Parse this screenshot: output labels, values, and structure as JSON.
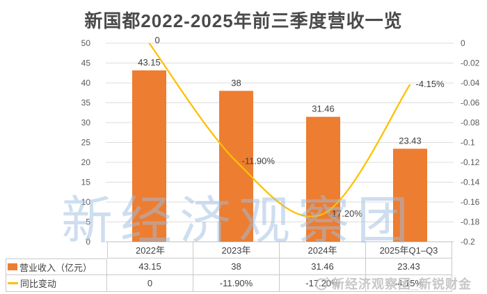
{
  "title": "新国都2022-2025年前三季度营收一览",
  "watermarks": {
    "center_text": "新经济观察团",
    "badge_text": "新经济观察团_新锐财金"
  },
  "chart_data": {
    "type": "bar",
    "combo": "bar+line",
    "title": "新国都2022-2025年前三季度营收一览",
    "categories": [
      "2022年",
      "2023年",
      "2024年",
      "2025年Q1–Q3"
    ],
    "series": [
      {
        "name": "营业收入（亿元）",
        "render": "bar",
        "axis": "left",
        "color": "#ED7D31",
        "values": [
          43.15,
          38,
          31.46,
          23.43
        ],
        "labels": [
          "43.15",
          "38",
          "31.46",
          "23.43"
        ]
      },
      {
        "name": "同比变动",
        "render": "line",
        "axis": "right",
        "color": "#FFC000",
        "values": [
          0,
          -0.119,
          -0.172,
          -0.0415
        ],
        "labels": [
          "0",
          "-11.90%",
          "-17.20%",
          "-4.15%"
        ]
      }
    ],
    "left_axis": {
      "min": 0,
      "max": 50,
      "step": 5,
      "ticks": [
        "50",
        "45",
        "40",
        "35",
        "30",
        "25",
        "20",
        "15",
        "10",
        "5",
        "0"
      ]
    },
    "right_axis": {
      "min": -0.2,
      "max": 0,
      "step": 0.02,
      "ticks": [
        "0",
        "-0.02",
        "-0.04",
        "-0.06",
        "-0.08",
        "-0.1",
        "-0.12",
        "-0.14",
        "-0.16",
        "-0.18",
        "-0.2"
      ]
    },
    "grid": true,
    "legend_position": "data-table-left"
  },
  "colors": {
    "bar": "#ED7D31",
    "line": "#FFC000",
    "grid": "#dcdcdc",
    "axis_line": "#bfbfbf",
    "axis_text": "#595959",
    "label_text": "#404040",
    "table_border": "#c9c9c9",
    "title_text": "#4a4a4a",
    "watermark": "#9fbee0"
  }
}
